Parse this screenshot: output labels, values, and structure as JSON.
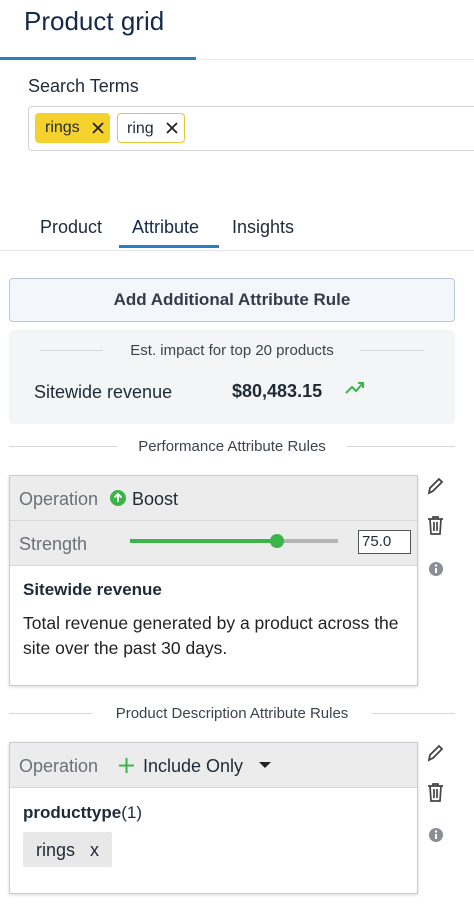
{
  "header": {
    "title": "Product grid"
  },
  "search": {
    "label": "Search Terms",
    "chips": [
      "rings",
      "ring"
    ]
  },
  "tabs": [
    "Product",
    "Attribute",
    "Insights"
  ],
  "add_rule_button": "Add Additional Attribute Rule",
  "impact": {
    "heading": "Est. impact for top 20 products",
    "metric": "Sitewide revenue",
    "value": "$80,483.15"
  },
  "performance_rules": {
    "heading": "Performance Attribute Rules",
    "rule": {
      "operation_label": "Operation",
      "operation": "Boost",
      "strength_label": "Strength",
      "strength": "75.0",
      "attribute": "Sitewide revenue",
      "description": "Total revenue generated by a product across the site over the past 30 days."
    }
  },
  "description_rules": {
    "heading": "Product Description Attribute Rules",
    "rule": {
      "operation_label": "Operation",
      "operation": "Include Only",
      "field": "producttype",
      "count": "(1)",
      "values": [
        {
          "label": "rings",
          "remove": "x"
        }
      ]
    }
  }
}
